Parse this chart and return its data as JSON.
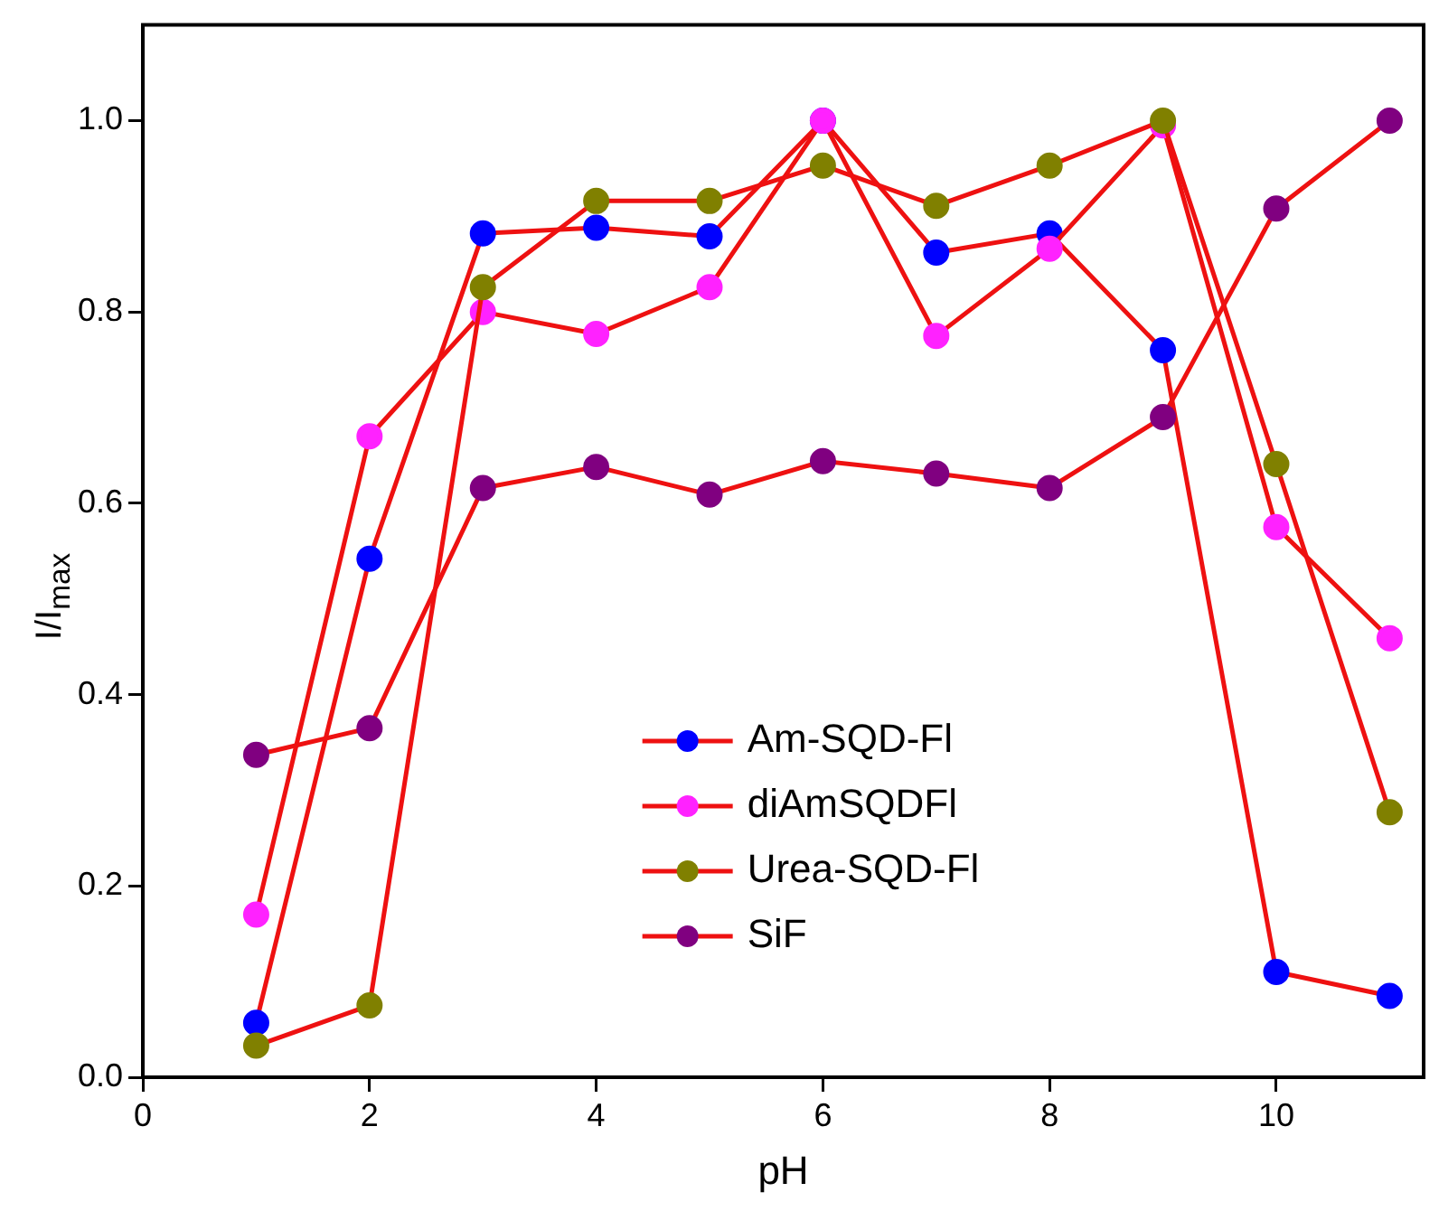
{
  "chart_data": {
    "type": "line",
    "xlabel": "pH",
    "ylabel": "I/I$_{max}$",
    "x": [
      1,
      2,
      3,
      4,
      5,
      6,
      7,
      8,
      9,
      10,
      11
    ],
    "series": [
      {
        "name": "Am-SQD-Fl",
        "color": "#0000ff",
        "values": [
          0.057,
          0.542,
          0.882,
          0.888,
          0.879,
          1.0,
          0.862,
          0.882,
          0.76,
          0.11,
          0.085
        ]
      },
      {
        "name": "diAmSQDFl",
        "color": "#ff22ff",
        "values": [
          0.17,
          0.67,
          0.8,
          0.777,
          0.826,
          1.0,
          0.775,
          0.866,
          0.995,
          0.575,
          0.459
        ]
      },
      {
        "name": "Urea-SQD-Fl",
        "color": "#808000",
        "values": [
          0.033,
          0.075,
          0.826,
          0.916,
          0.916,
          0.953,
          0.911,
          0.953,
          1.0,
          0.641,
          0.277
        ]
      },
      {
        "name": "SiF",
        "color": "#800080",
        "values": [
          0.337,
          0.365,
          0.616,
          0.638,
          0.609,
          0.644,
          0.631,
          0.616,
          0.69,
          0.908,
          1.0
        ]
      }
    ],
    "xlim": [
      0,
      11.3
    ],
    "xticks": [
      0,
      2,
      4,
      6,
      8,
      10
    ],
    "ylim": [
      0,
      1.1
    ],
    "yticks": [
      {
        "value": 0,
        "label": "0.0"
      },
      0.2,
      0.4,
      0.6,
      0.8,
      {
        "value": 1,
        "label": "1.0"
      }
    ],
    "grid": false,
    "legend": "bottom",
    "marker": "circle",
    "line_style": "solid"
  }
}
